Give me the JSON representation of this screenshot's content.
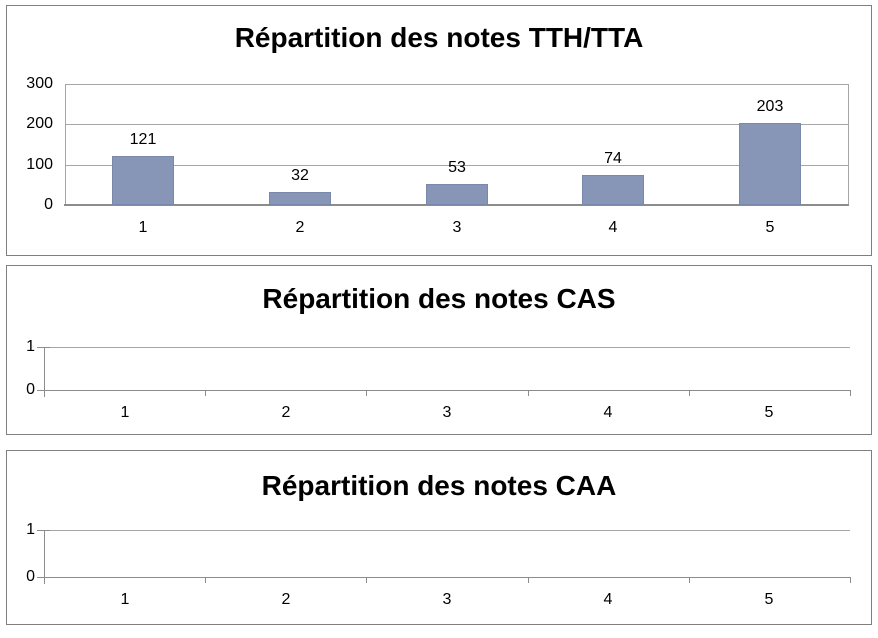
{
  "colors": {
    "bar_fill": "#8795B7",
    "bar_border": "#7A88AB",
    "gridline": "#A6A6A6",
    "axis": "#8C8C8C",
    "panel_border": "#7F7F7F",
    "text": "#000000"
  },
  "chart_data": [
    {
      "type": "bar",
      "title": "Répartition des notes TTH/TTA",
      "categories": [
        "1",
        "2",
        "3",
        "4",
        "5"
      ],
      "values": [
        121,
        32,
        53,
        74,
        203
      ],
      "data_labels": [
        "121",
        "32",
        "53",
        "74",
        "203"
      ],
      "xlabel": "",
      "ylabel": "",
      "ylim": [
        0,
        300
      ],
      "yticks": [
        0,
        100,
        200,
        300
      ],
      "grid": true,
      "legend": "none"
    },
    {
      "type": "bar",
      "title": "Répartition des notes CAS",
      "categories": [
        "1",
        "2",
        "3",
        "4",
        "5"
      ],
      "values": [
        null,
        null,
        null,
        null,
        null
      ],
      "data_labels": [],
      "xlabel": "",
      "ylabel": "",
      "ylim": [
        0,
        1
      ],
      "yticks": [
        0,
        1
      ],
      "grid": true,
      "legend": "none"
    },
    {
      "type": "bar",
      "title": "Répartition des notes CAA",
      "categories": [
        "1",
        "2",
        "3",
        "4",
        "5"
      ],
      "values": [
        null,
        null,
        null,
        null,
        null
      ],
      "data_labels": [],
      "xlabel": "",
      "ylabel": "",
      "ylim": [
        0,
        1
      ],
      "yticks": [
        0,
        1
      ],
      "grid": true,
      "legend": "none"
    }
  ]
}
